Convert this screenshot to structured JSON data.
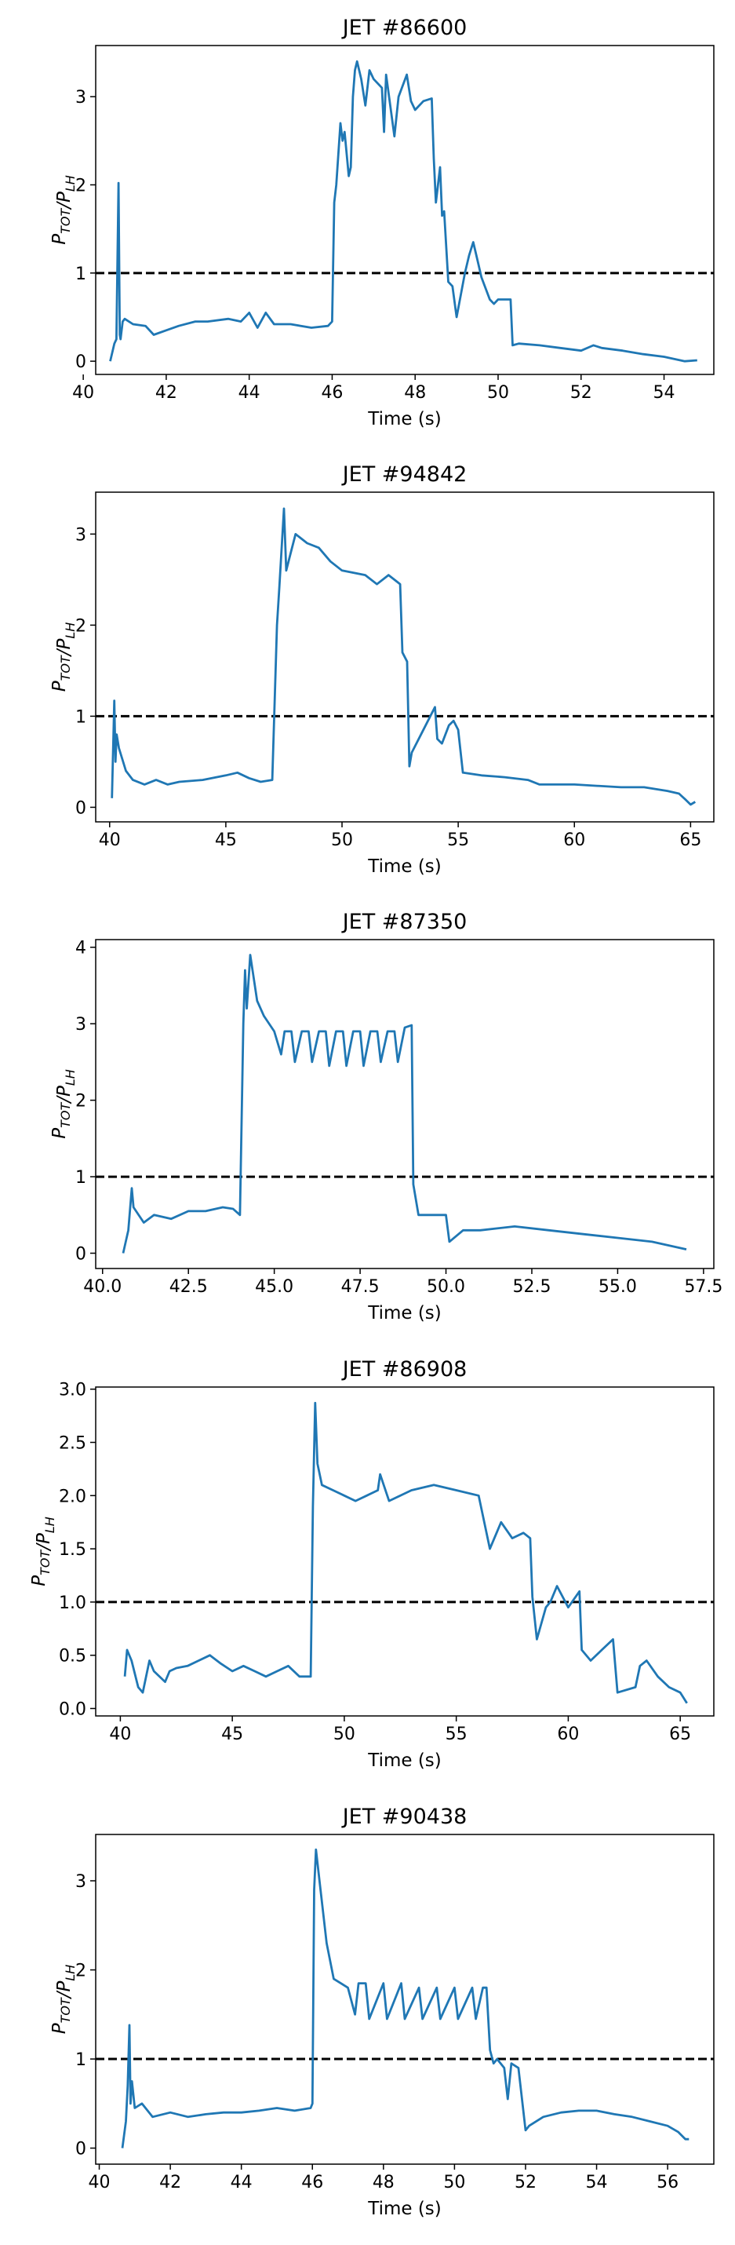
{
  "chart_data": [
    {
      "type": "line",
      "title": "JET #86600",
      "xlabel": "Time (s)",
      "ylabel": "P_TOT/P_LH",
      "xlim": [
        40.3,
        55.2
      ],
      "ylim": [
        -0.15,
        3.58
      ],
      "xticks": [
        40,
        42,
        44,
        46,
        48,
        50,
        52,
        54
      ],
      "yticks": [
        0,
        1,
        2,
        3
      ],
      "threshold": 1,
      "grid": false,
      "series": [
        {
          "color": "#1f77b4",
          "x": [
            40.65,
            40.75,
            40.8,
            40.85,
            40.88,
            40.9,
            40.95,
            41.0,
            41.2,
            41.5,
            41.7,
            42.0,
            42.3,
            42.7,
            43.0,
            43.5,
            43.8,
            44.0,
            44.2,
            44.4,
            44.6,
            45.0,
            45.5,
            45.9,
            46.0,
            46.05,
            46.1,
            46.2,
            46.25,
            46.3,
            46.4,
            46.45,
            46.5,
            46.55,
            46.6,
            46.7,
            46.8,
            46.9,
            47.0,
            47.2,
            47.25,
            47.3,
            47.5,
            47.6,
            47.8,
            47.9,
            48.0,
            48.2,
            48.4,
            48.45,
            48.5,
            48.6,
            48.65,
            48.7,
            48.8,
            48.9,
            49.0,
            49.1,
            49.2,
            49.3,
            49.4,
            49.5,
            49.6,
            49.8,
            49.9,
            50.0,
            50.3,
            50.35,
            50.5,
            51.0,
            51.5,
            52.0,
            52.3,
            52.5,
            53.0,
            53.5,
            54.0,
            54.5,
            54.8
          ],
          "y": [
            0.0,
            0.2,
            0.25,
            2.02,
            0.3,
            0.25,
            0.45,
            0.48,
            0.42,
            0.4,
            0.3,
            0.35,
            0.4,
            0.45,
            0.45,
            0.48,
            0.45,
            0.55,
            0.38,
            0.55,
            0.42,
            0.42,
            0.38,
            0.4,
            0.45,
            1.8,
            2.0,
            2.7,
            2.5,
            2.6,
            2.1,
            2.2,
            3.0,
            3.3,
            3.4,
            3.2,
            2.9,
            3.3,
            3.2,
            3.1,
            2.6,
            3.25,
            2.55,
            3.0,
            3.25,
            2.95,
            2.85,
            2.95,
            2.98,
            2.3,
            1.8,
            2.2,
            1.65,
            1.7,
            0.9,
            0.85,
            0.5,
            0.75,
            1.0,
            1.2,
            1.35,
            1.15,
            0.95,
            0.7,
            0.65,
            0.7,
            0.7,
            0.18,
            0.2,
            0.18,
            0.15,
            0.12,
            0.18,
            0.15,
            0.12,
            0.08,
            0.05,
            0.0,
            0.01
          ]
        }
      ]
    },
    {
      "type": "line",
      "title": "JET #94842",
      "xlabel": "Time (s)",
      "ylabel": "P_TOT/P_LH",
      "xlim": [
        39.4,
        66.0
      ],
      "ylim": [
        -0.16,
        3.46
      ],
      "xticks": [
        40,
        45,
        50,
        55,
        60,
        65
      ],
      "yticks": [
        0,
        1,
        2,
        3
      ],
      "threshold": 1,
      "grid": false,
      "series": [
        {
          "color": "#1f77b4",
          "x": [
            40.1,
            40.2,
            40.25,
            40.3,
            40.4,
            40.7,
            41.0,
            41.5,
            42.0,
            42.5,
            43.0,
            44.0,
            45.0,
            45.5,
            46.0,
            46.5,
            47.0,
            47.2,
            47.3,
            47.5,
            47.6,
            47.8,
            48.0,
            48.5,
            49.0,
            49.5,
            50.0,
            51.0,
            51.5,
            52.0,
            52.5,
            52.6,
            52.8,
            52.9,
            53.0,
            53.2,
            53.5,
            54.0,
            54.1,
            54.3,
            54.6,
            54.8,
            55.0,
            55.2,
            56.0,
            57.0,
            58.0,
            58.5,
            60.0,
            62.0,
            63.0,
            64.0,
            64.5,
            64.8,
            65.0,
            65.2
          ],
          "y": [
            0.1,
            1.17,
            0.5,
            0.8,
            0.65,
            0.4,
            0.3,
            0.25,
            0.3,
            0.25,
            0.28,
            0.3,
            0.35,
            0.38,
            0.32,
            0.28,
            0.3,
            2.0,
            2.4,
            3.28,
            2.6,
            2.8,
            3.0,
            2.9,
            2.85,
            2.7,
            2.6,
            2.55,
            2.45,
            2.55,
            2.45,
            1.7,
            1.6,
            0.45,
            0.6,
            0.7,
            0.85,
            1.1,
            0.75,
            0.7,
            0.9,
            0.95,
            0.85,
            0.38,
            0.35,
            0.33,
            0.3,
            0.25,
            0.25,
            0.22,
            0.22,
            0.18,
            0.15,
            0.08,
            0.03,
            0.06
          ]
        }
      ]
    },
    {
      "type": "line",
      "title": "JET #87350",
      "xlabel": "Time (s)",
      "ylabel": "P_TOT/P_LH",
      "xlim": [
        39.8,
        57.8
      ],
      "ylim": [
        -0.2,
        4.1
      ],
      "xticks": [
        40.0,
        42.5,
        45.0,
        47.5,
        50.0,
        52.5,
        55.0,
        57.5
      ],
      "yticks": [
        0,
        1,
        2,
        3,
        4
      ],
      "threshold": 1,
      "grid": false,
      "series": [
        {
          "color": "#1f77b4",
          "x": [
            40.6,
            40.7,
            40.75,
            40.85,
            40.9,
            41.2,
            41.5,
            42.0,
            42.5,
            43.0,
            43.5,
            43.8,
            44.0,
            44.1,
            44.15,
            44.2,
            44.3,
            44.4,
            44.5,
            44.7,
            45.0,
            45.2,
            45.3,
            45.5,
            45.6,
            45.8,
            46.0,
            46.1,
            46.3,
            46.5,
            46.6,
            46.8,
            47.0,
            47.1,
            47.3,
            47.5,
            47.6,
            47.8,
            48.0,
            48.1,
            48.3,
            48.5,
            48.6,
            48.8,
            49.0,
            49.05,
            49.2,
            49.5,
            50.0,
            50.1,
            50.5,
            51.0,
            52.0,
            53.0,
            54.0,
            55.0,
            56.0,
            57.0
          ],
          "y": [
            0.0,
            0.2,
            0.3,
            0.85,
            0.6,
            0.4,
            0.5,
            0.45,
            0.55,
            0.55,
            0.6,
            0.58,
            0.5,
            3.0,
            3.7,
            3.2,
            3.9,
            3.6,
            3.3,
            3.1,
            2.9,
            2.6,
            2.9,
            2.9,
            2.5,
            2.9,
            2.9,
            2.5,
            2.9,
            2.9,
            2.45,
            2.9,
            2.9,
            2.45,
            2.9,
            2.9,
            2.45,
            2.9,
            2.9,
            2.5,
            2.9,
            2.9,
            2.5,
            2.95,
            2.98,
            0.9,
            0.5,
            0.5,
            0.5,
            0.15,
            0.3,
            0.3,
            0.35,
            0.3,
            0.25,
            0.2,
            0.15,
            0.05
          ]
        }
      ]
    },
    {
      "type": "line",
      "title": "JET #86908",
      "xlabel": "Time (s)",
      "ylabel": "P_TOT/P_LH",
      "xlim": [
        38.9,
        66.5
      ],
      "ylim": [
        -0.07,
        3.02
      ],
      "xticks": [
        40,
        45,
        50,
        55,
        60,
        65
      ],
      "yticks": [
        0.0,
        0.5,
        1.0,
        1.5,
        2.0,
        2.5,
        3.0
      ],
      "threshold": 1,
      "grid": false,
      "series": [
        {
          "color": "#1f77b4",
          "x": [
            40.2,
            40.3,
            40.5,
            40.8,
            41.0,
            41.3,
            41.5,
            42.0,
            42.2,
            42.5,
            43.0,
            43.5,
            44.0,
            44.5,
            45.0,
            45.5,
            46.0,
            46.5,
            47.0,
            47.5,
            48.0,
            48.5,
            48.6,
            48.7,
            48.8,
            49.0,
            49.5,
            50.0,
            50.5,
            51.0,
            51.5,
            51.6,
            52.0,
            53.0,
            54.0,
            55.0,
            56.0,
            56.5,
            57.0,
            57.5,
            58.0,
            58.3,
            58.4,
            58.6,
            59.0,
            59.2,
            59.5,
            60.0,
            60.5,
            60.6,
            61.0,
            61.5,
            62.0,
            62.2,
            63.0,
            63.2,
            63.5,
            64.0,
            64.5,
            65.0,
            65.3
          ],
          "y": [
            0.3,
            0.55,
            0.45,
            0.2,
            0.15,
            0.45,
            0.35,
            0.25,
            0.35,
            0.38,
            0.4,
            0.45,
            0.5,
            0.42,
            0.35,
            0.4,
            0.35,
            0.3,
            0.35,
            0.4,
            0.3,
            0.3,
            1.9,
            2.87,
            2.3,
            2.1,
            2.05,
            2.0,
            1.95,
            2.0,
            2.05,
            2.2,
            1.95,
            2.05,
            2.1,
            2.05,
            2.0,
            1.5,
            1.75,
            1.6,
            1.65,
            1.6,
            1.05,
            0.65,
            0.95,
            1.0,
            1.15,
            0.95,
            1.1,
            0.55,
            0.45,
            0.55,
            0.65,
            0.15,
            0.2,
            0.4,
            0.45,
            0.3,
            0.2,
            0.15,
            0.05
          ]
        }
      ]
    },
    {
      "type": "line",
      "title": "JET #90438",
      "xlabel": "Time (s)",
      "ylabel": "P_TOT/P_LH",
      "xlim": [
        39.9,
        57.3
      ],
      "ylim": [
        -0.18,
        3.52
      ],
      "xticks": [
        40,
        42,
        44,
        46,
        48,
        50,
        52,
        54,
        56
      ],
      "yticks": [
        0,
        1,
        2,
        3
      ],
      "threshold": 1,
      "grid": false,
      "series": [
        {
          "color": "#1f77b4",
          "x": [
            40.65,
            40.75,
            40.8,
            40.85,
            40.88,
            40.92,
            41.0,
            41.2,
            41.5,
            42.0,
            42.5,
            43.0,
            43.5,
            44.0,
            44.5,
            45.0,
            45.5,
            45.95,
            46.0,
            46.05,
            46.1,
            46.2,
            46.4,
            46.6,
            46.8,
            47.0,
            47.2,
            47.3,
            47.5,
            47.6,
            48.0,
            48.1,
            48.5,
            48.6,
            49.0,
            49.1,
            49.5,
            49.6,
            50.0,
            50.1,
            50.5,
            50.6,
            50.8,
            50.9,
            51.0,
            51.1,
            51.2,
            51.4,
            51.5,
            51.6,
            51.8,
            52.0,
            52.1,
            52.5,
            53.0,
            53.5,
            54.0,
            54.5,
            55.0,
            55.5,
            56.0,
            56.3,
            56.5,
            56.6
          ],
          "y": [
            0.0,
            0.3,
            0.7,
            1.38,
            0.5,
            0.75,
            0.45,
            0.5,
            0.35,
            0.4,
            0.35,
            0.38,
            0.4,
            0.4,
            0.42,
            0.45,
            0.42,
            0.45,
            0.5,
            2.9,
            3.35,
            3.0,
            2.3,
            1.9,
            1.85,
            1.8,
            1.5,
            1.85,
            1.85,
            1.45,
            1.85,
            1.45,
            1.85,
            1.45,
            1.8,
            1.45,
            1.8,
            1.45,
            1.8,
            1.45,
            1.8,
            1.45,
            1.8,
            1.8,
            1.1,
            0.95,
            1.0,
            0.9,
            0.55,
            0.95,
            0.9,
            0.2,
            0.25,
            0.35,
            0.4,
            0.42,
            0.42,
            0.38,
            0.35,
            0.3,
            0.25,
            0.18,
            0.1,
            0.1
          ]
        }
      ]
    }
  ]
}
